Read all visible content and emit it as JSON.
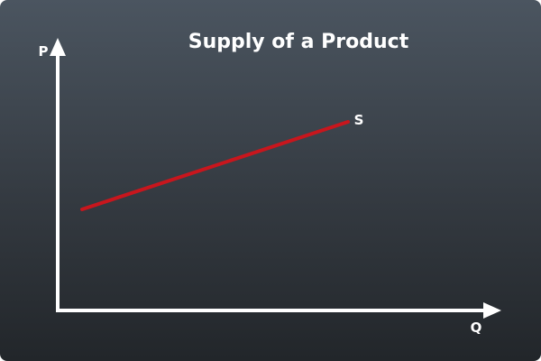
{
  "title": "Supply of a Product",
  "axes": {
    "y_label": "P",
    "x_label": "Q"
  },
  "curves": [
    {
      "label": "S",
      "color": "#c8161d"
    }
  ],
  "colors": {
    "background_top": "#4b5560",
    "background_bottom": "#22262a",
    "axis": "#ffffff",
    "text": "#ffffff"
  }
}
